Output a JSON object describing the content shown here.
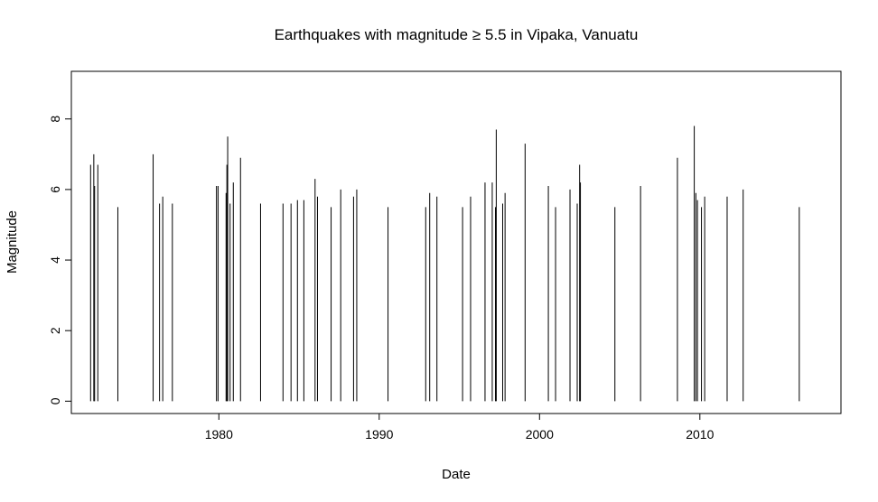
{
  "chart_data": {
    "type": "bar",
    "title": "Earthquakes with magnitude ≥ 5.5 in Vipaka, Vanuatu",
    "xlabel": "Date",
    "ylabel": "Magnitude",
    "xlim": [
      1970.8,
      2018.8
    ],
    "ylim": [
      -0.35,
      9.35
    ],
    "x_ticks": [
      1980,
      1990,
      2000,
      2010
    ],
    "y_ticks": [
      0,
      2,
      4,
      6,
      8
    ],
    "grid": false,
    "points": [
      {
        "x": 1972.0,
        "y": 6.7
      },
      {
        "x": 1972.2,
        "y": 7.0
      },
      {
        "x": 1972.25,
        "y": 6.1
      },
      {
        "x": 1972.45,
        "y": 6.7
      },
      {
        "x": 1973.7,
        "y": 5.5
      },
      {
        "x": 1975.9,
        "y": 7.0
      },
      {
        "x": 1976.3,
        "y": 5.6
      },
      {
        "x": 1976.5,
        "y": 5.8
      },
      {
        "x": 1977.1,
        "y": 5.6
      },
      {
        "x": 1979.85,
        "y": 6.1
      },
      {
        "x": 1979.95,
        "y": 6.1
      },
      {
        "x": 1980.45,
        "y": 5.9
      },
      {
        "x": 1980.5,
        "y": 6.7
      },
      {
        "x": 1980.55,
        "y": 7.5
      },
      {
        "x": 1980.7,
        "y": 5.6
      },
      {
        "x": 1980.9,
        "y": 6.2
      },
      {
        "x": 1981.35,
        "y": 6.9
      },
      {
        "x": 1982.6,
        "y": 5.6
      },
      {
        "x": 1984.0,
        "y": 5.6
      },
      {
        "x": 1984.5,
        "y": 5.6
      },
      {
        "x": 1984.9,
        "y": 5.7
      },
      {
        "x": 1985.3,
        "y": 5.7
      },
      {
        "x": 1986.0,
        "y": 6.3
      },
      {
        "x": 1986.15,
        "y": 5.8
      },
      {
        "x": 1987.0,
        "y": 5.5
      },
      {
        "x": 1987.6,
        "y": 6.0
      },
      {
        "x": 1988.4,
        "y": 5.8
      },
      {
        "x": 1988.6,
        "y": 6.0
      },
      {
        "x": 1990.55,
        "y": 5.5
      },
      {
        "x": 1992.9,
        "y": 5.5
      },
      {
        "x": 1993.15,
        "y": 5.9
      },
      {
        "x": 1993.6,
        "y": 5.8
      },
      {
        "x": 1995.2,
        "y": 5.5
      },
      {
        "x": 1995.7,
        "y": 5.8
      },
      {
        "x": 1996.6,
        "y": 6.2
      },
      {
        "x": 1997.05,
        "y": 6.2
      },
      {
        "x": 1997.25,
        "y": 5.5
      },
      {
        "x": 1997.3,
        "y": 7.7
      },
      {
        "x": 1997.7,
        "y": 5.6
      },
      {
        "x": 1997.85,
        "y": 5.9
      },
      {
        "x": 1999.1,
        "y": 7.3
      },
      {
        "x": 2000.55,
        "y": 6.1
      },
      {
        "x": 2001.0,
        "y": 5.5
      },
      {
        "x": 2001.9,
        "y": 6.0
      },
      {
        "x": 2002.35,
        "y": 5.6
      },
      {
        "x": 2002.5,
        "y": 6.7
      },
      {
        "x": 2002.55,
        "y": 6.2
      },
      {
        "x": 2004.7,
        "y": 5.5
      },
      {
        "x": 2006.3,
        "y": 6.1
      },
      {
        "x": 2008.6,
        "y": 6.9
      },
      {
        "x": 2009.65,
        "y": 7.8
      },
      {
        "x": 2009.75,
        "y": 5.9
      },
      {
        "x": 2009.85,
        "y": 5.7
      },
      {
        "x": 2010.1,
        "y": 5.5
      },
      {
        "x": 2010.3,
        "y": 5.8
      },
      {
        "x": 2011.7,
        "y": 5.8
      },
      {
        "x": 2012.7,
        "y": 6.0
      },
      {
        "x": 2016.2,
        "y": 5.5
      }
    ]
  }
}
